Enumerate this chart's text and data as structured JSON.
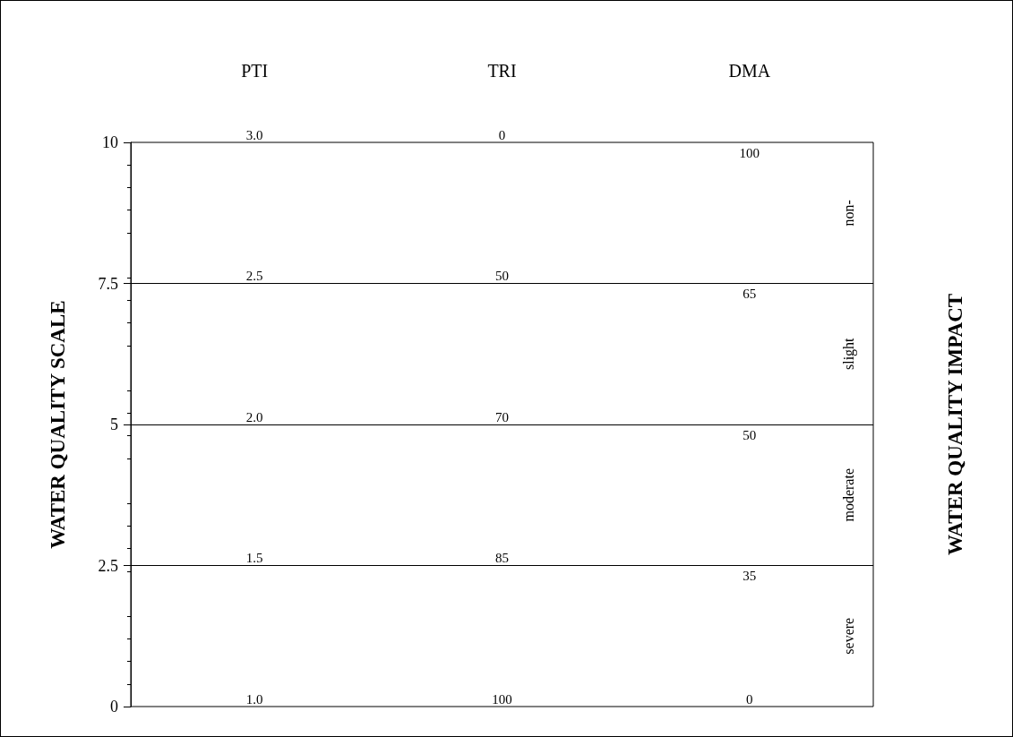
{
  "chart_data": {
    "type": "line",
    "values": [
      null,
      null,
      null
    ],
    "ylabel": "WATER QUALITY SCALE",
    "y2label": "WATER QUALITY IMPACT",
    "categories": [
      "PTI",
      "TRI",
      "DMA"
    ],
    "ylim": [
      0,
      10
    ],
    "yticks": [
      0,
      2.5,
      5,
      7.5,
      10
    ],
    "ref_lines": [
      {
        "axis": "y",
        "value": 2.5
      },
      {
        "axis": "y",
        "value": 5
      },
      {
        "axis": "y",
        "value": 7.5
      }
    ],
    "annotations": [
      "3.0",
      "2.5",
      "2.0",
      "1.5",
      "1.0",
      "0",
      "50",
      "70",
      "85",
      "100",
      "100",
      "65",
      "50",
      "35",
      "0",
      "non-",
      "slight",
      "moderate",
      "severe"
    ]
  }
}
